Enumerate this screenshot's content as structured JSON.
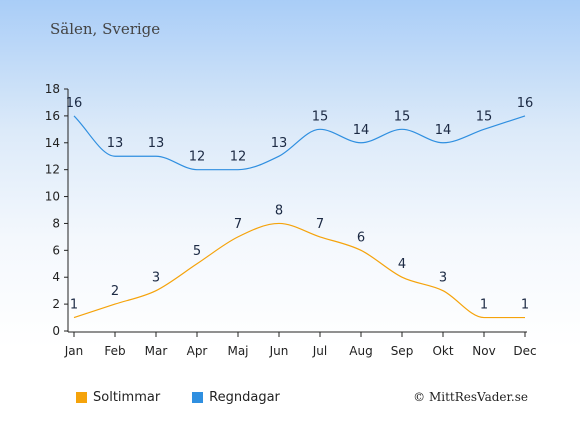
{
  "title": "Sälen, Sverige",
  "copyright": "© MittResVader.se",
  "chart_data": {
    "type": "line",
    "categories": [
      "Jan",
      "Feb",
      "Mar",
      "Apr",
      "Maj",
      "Jun",
      "Jul",
      "Aug",
      "Sep",
      "Okt",
      "Nov",
      "Dec"
    ],
    "ylim": [
      0,
      18
    ],
    "yticks": [
      0,
      2,
      4,
      6,
      8,
      10,
      12,
      14,
      16,
      18
    ],
    "grid": false,
    "legend_position": "bottom-left",
    "series": [
      {
        "name": "Soltimmar",
        "color": "#f5a30b",
        "values": [
          1,
          2,
          3,
          5,
          7,
          8,
          7,
          6,
          4,
          3,
          1,
          1
        ]
      },
      {
        "name": "Regndagar",
        "color": "#2f8fe0",
        "values": [
          16,
          13,
          13,
          12,
          12,
          13,
          15,
          14,
          15,
          14,
          15,
          16
        ]
      }
    ]
  }
}
